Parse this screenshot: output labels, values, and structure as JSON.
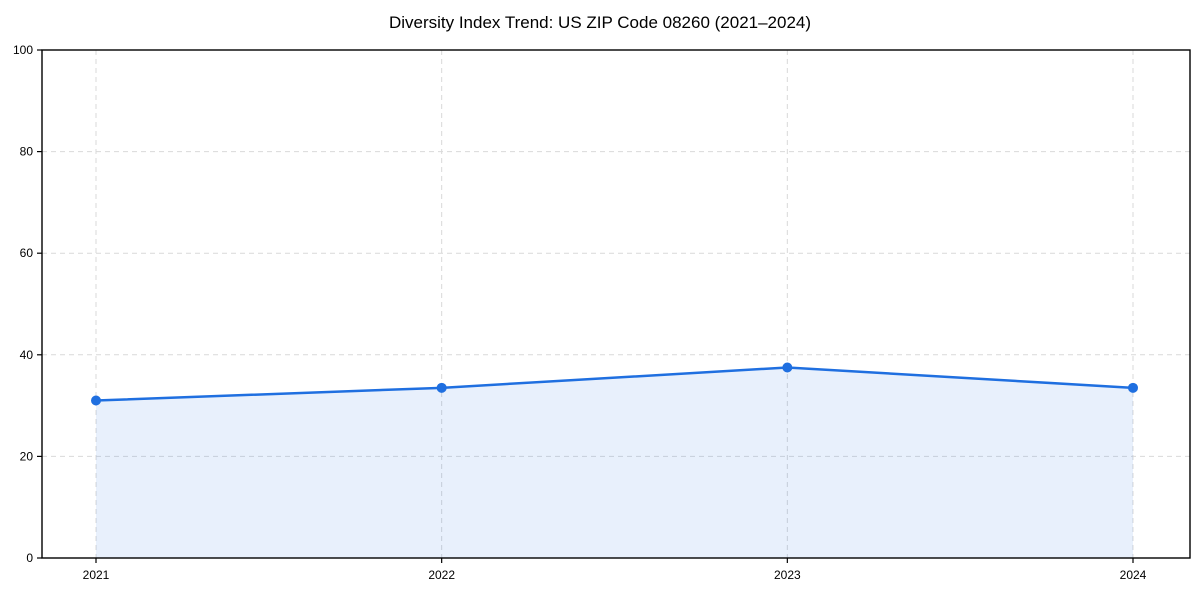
{
  "chart_data": {
    "type": "area",
    "title": "Diversity Index Trend: US ZIP Code 08260 (2021–2024)",
    "categories": [
      "2021",
      "2022",
      "2023",
      "2024"
    ],
    "series": [
      {
        "name": "Diversity Index",
        "values": [
          31,
          33.5,
          37.5,
          33.5
        ]
      }
    ],
    "xlabel": "",
    "ylabel": "",
    "ylim": [
      0,
      100
    ],
    "yticks": [
      0,
      20,
      40,
      60,
      80,
      100
    ],
    "grid": true,
    "grid_style": "dashed",
    "legend_position": "none",
    "colors": {
      "line": "#1f6fe0",
      "marker": "#1f6fe0",
      "fill": "#1f6fe0",
      "grid": "#d9d9d9",
      "axis": "#000000",
      "text": "#000000",
      "background": "#ffffff"
    },
    "fill_opacity": 0.1
  }
}
